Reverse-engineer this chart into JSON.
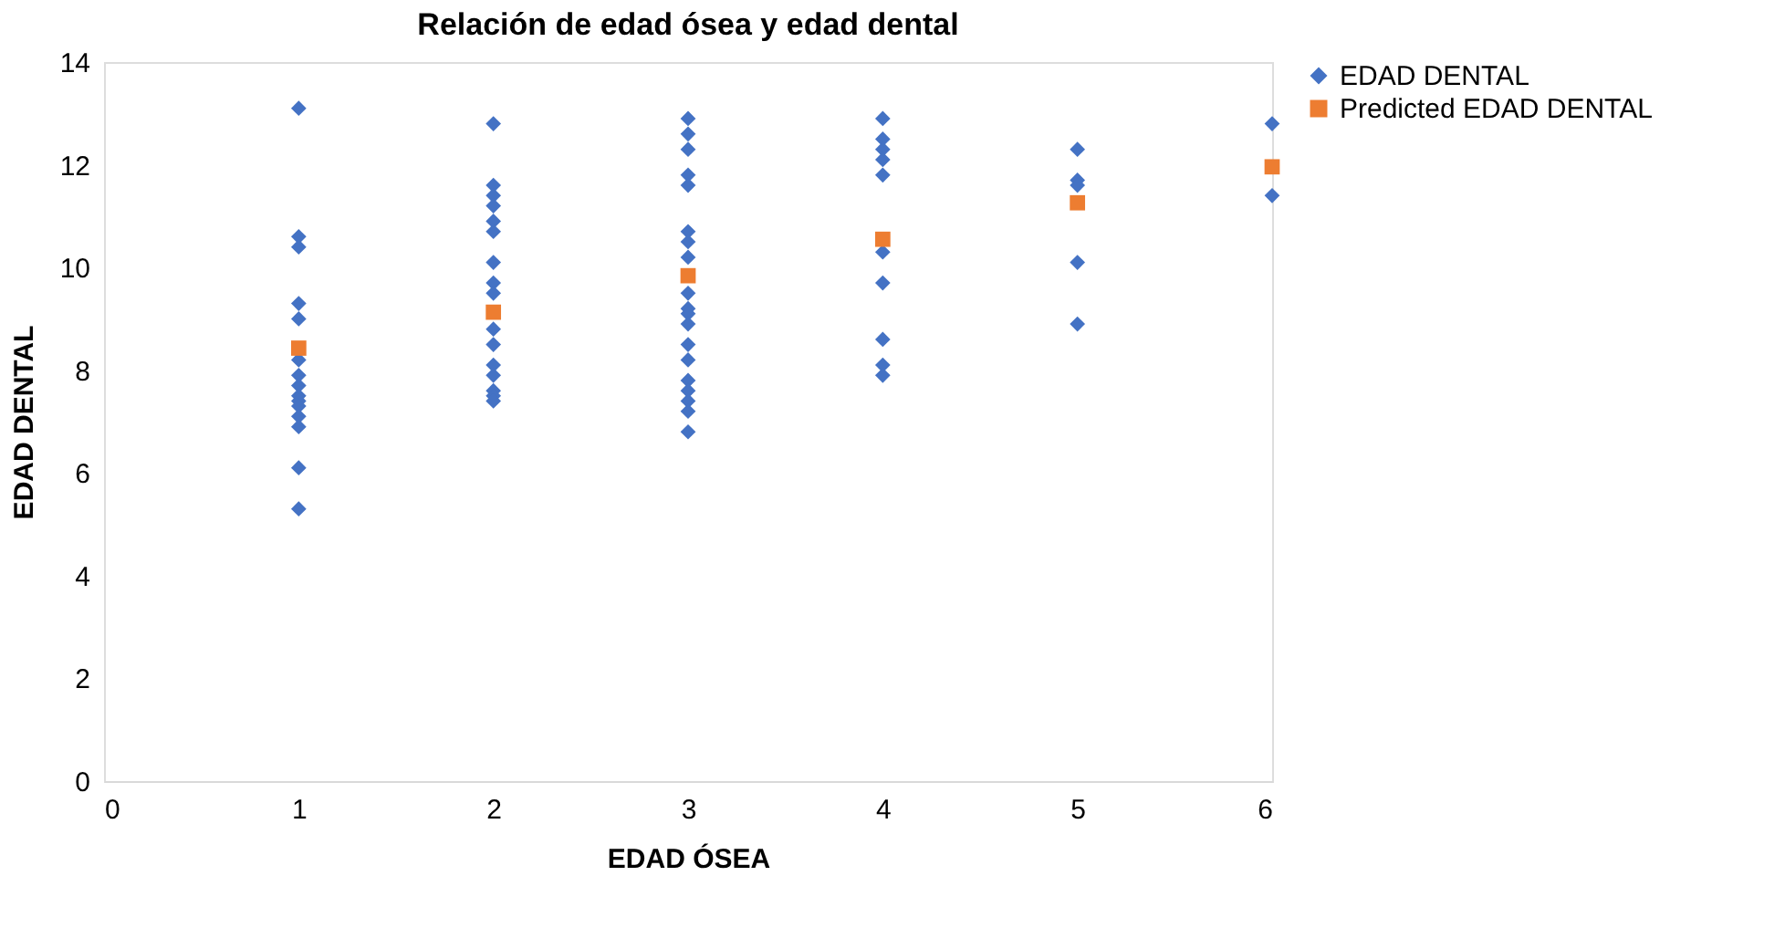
{
  "chart_data": {
    "type": "scatter",
    "title": "Relación de edad ósea y edad dental",
    "xlabel": "EDAD ÓSEA",
    "ylabel": "EDAD DENTAL",
    "xlim": [
      0,
      6
    ],
    "xticks": [
      0,
      1,
      2,
      3,
      4,
      5,
      6
    ],
    "ylim": [
      0,
      14
    ],
    "yticks": [
      0,
      2,
      4,
      6,
      8,
      10,
      12,
      14
    ],
    "grid": false,
    "legend": "right",
    "series": [
      {
        "name": "EDAD DENTAL",
        "color": "#4472c4",
        "marker": "diamond",
        "x": [
          1,
          1,
          1,
          1,
          1,
          1,
          1,
          1,
          1,
          1,
          1,
          1,
          1,
          1,
          1,
          2,
          2,
          2,
          2,
          2,
          2,
          2,
          2,
          2,
          2,
          2,
          2,
          2,
          2,
          2,
          2,
          3,
          3,
          3,
          3,
          3,
          3,
          3,
          3,
          3,
          3,
          3,
          3,
          3,
          3,
          3,
          3,
          3,
          3,
          3,
          4,
          4,
          4,
          4,
          4,
          4,
          4,
          4,
          4,
          4,
          5,
          5,
          5,
          5,
          5,
          6,
          6
        ],
        "values": [
          13.1,
          10.6,
          10.4,
          9.3,
          9.0,
          8.2,
          7.9,
          7.7,
          7.5,
          7.4,
          7.3,
          7.1,
          6.9,
          6.1,
          5.3,
          12.8,
          11.6,
          11.4,
          11.2,
          10.9,
          10.7,
          10.1,
          9.7,
          9.5,
          8.8,
          8.5,
          8.1,
          7.9,
          7.6,
          7.5,
          7.4,
          12.9,
          12.6,
          12.3,
          11.8,
          11.6,
          10.7,
          10.5,
          10.2,
          9.5,
          9.2,
          9.1,
          8.9,
          8.5,
          8.2,
          7.8,
          7.6,
          7.4,
          7.2,
          6.8,
          12.9,
          12.5,
          12.3,
          12.1,
          11.8,
          10.3,
          9.7,
          8.6,
          8.1,
          7.9,
          12.3,
          11.7,
          11.6,
          10.1,
          8.9,
          12.8,
          11.4
        ]
      },
      {
        "name": "Predicted EDAD DENTAL",
        "color": "#ed7d31",
        "marker": "square",
        "x": [
          1,
          2,
          3,
          4,
          5,
          6
        ],
        "values": [
          8.43,
          9.13,
          9.84,
          10.55,
          11.26,
          11.96
        ]
      }
    ]
  }
}
